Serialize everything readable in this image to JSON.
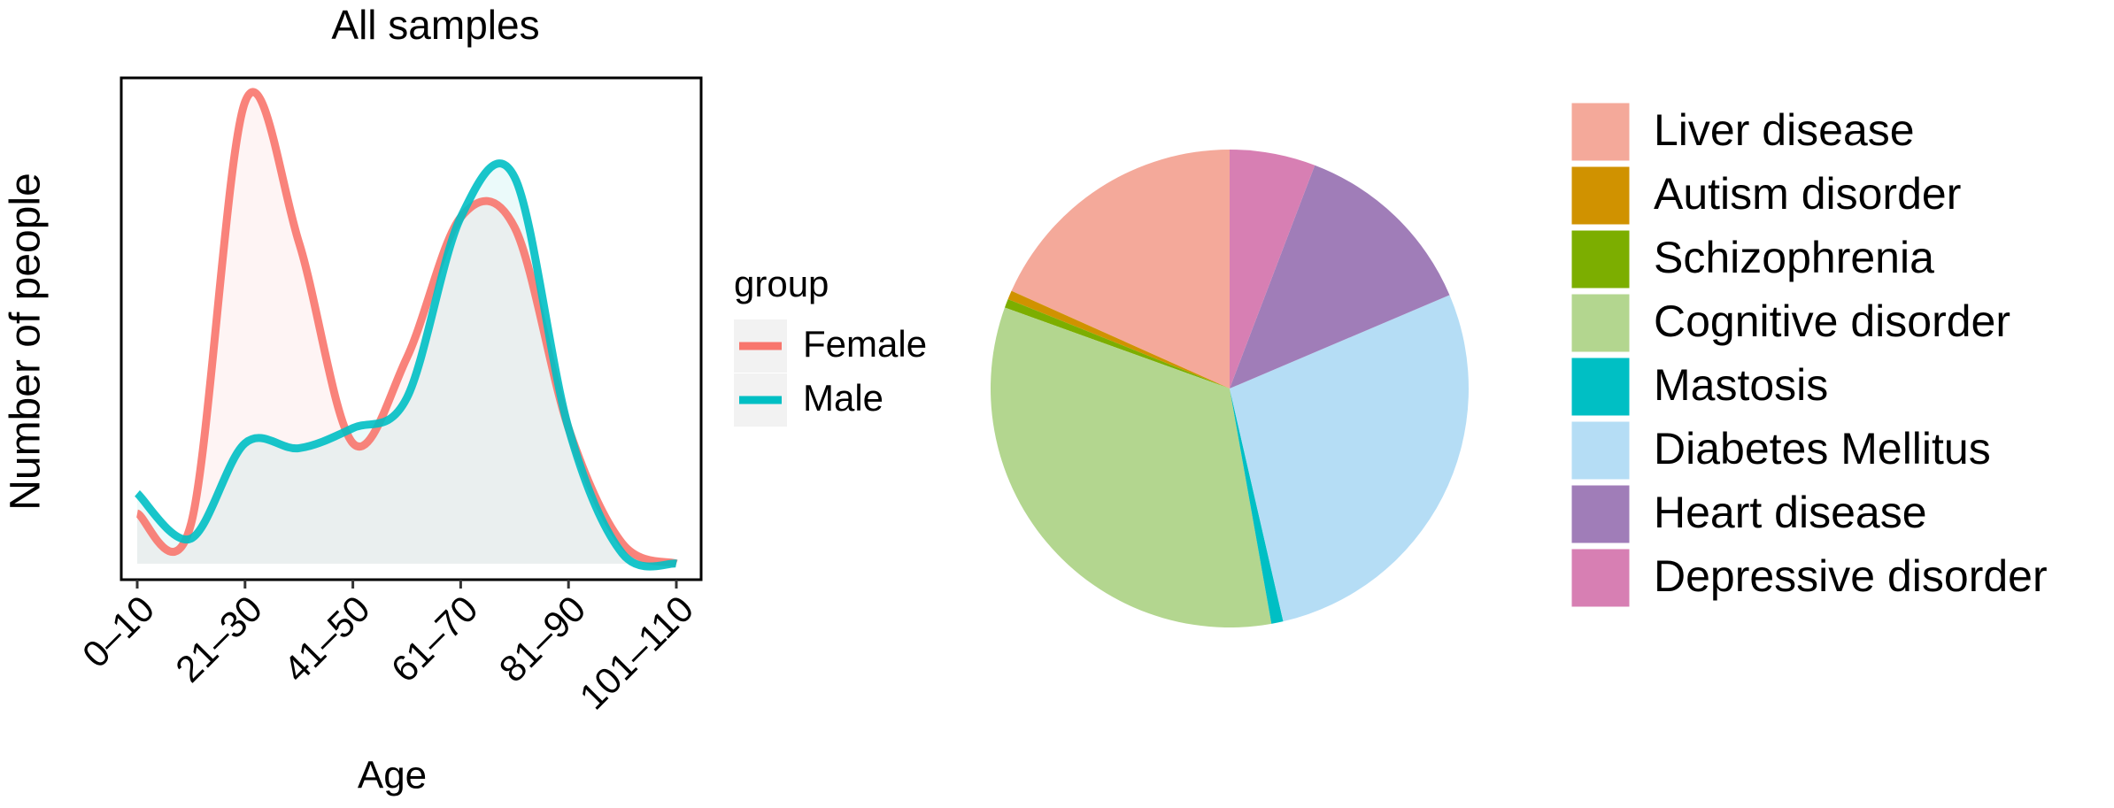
{
  "chart_data": [
    {
      "type": "line",
      "title": "All samples",
      "xlabel": "Age",
      "ylabel": "Number of people",
      "legend_title": "group",
      "categories": [
        "0–10",
        null,
        "21–30",
        null,
        "41–50",
        null,
        "61–70",
        null,
        "81–90",
        null,
        "101–110"
      ],
      "ylim": [
        -3.2,
        96.8
      ],
      "series": [
        {
          "name": "Female",
          "color": "#F8766D",
          "values": [
            10,
            8,
            92,
            64,
            24,
            41,
            69,
            67,
            27,
            4,
            0
          ]
        },
        {
          "name": "Male",
          "color": "#00BFC4",
          "values": [
            14,
            5,
            24,
            23,
            27,
            33,
            69,
            77,
            27,
            2,
            0
          ]
        }
      ]
    },
    {
      "type": "pie",
      "categories": [
        "Liver disease",
        "Autism disorder",
        "Schizophrenia",
        "Cognitive disorder",
        "Mastosis",
        "Diabetes Mellitus",
        "Heart disease",
        "Depressive disorder"
      ],
      "values": [
        18.3,
        0.6,
        0.6,
        33.3,
        0.8,
        27.8,
        12.8,
        5.8
      ],
      "colors": [
        "#F4A99A",
        "#D09200",
        "#7CAE00",
        "#B3D68F",
        "#00BFC4",
        "#B5DDF5",
        "#A07DB8",
        "#D77FB3"
      ]
    }
  ]
}
